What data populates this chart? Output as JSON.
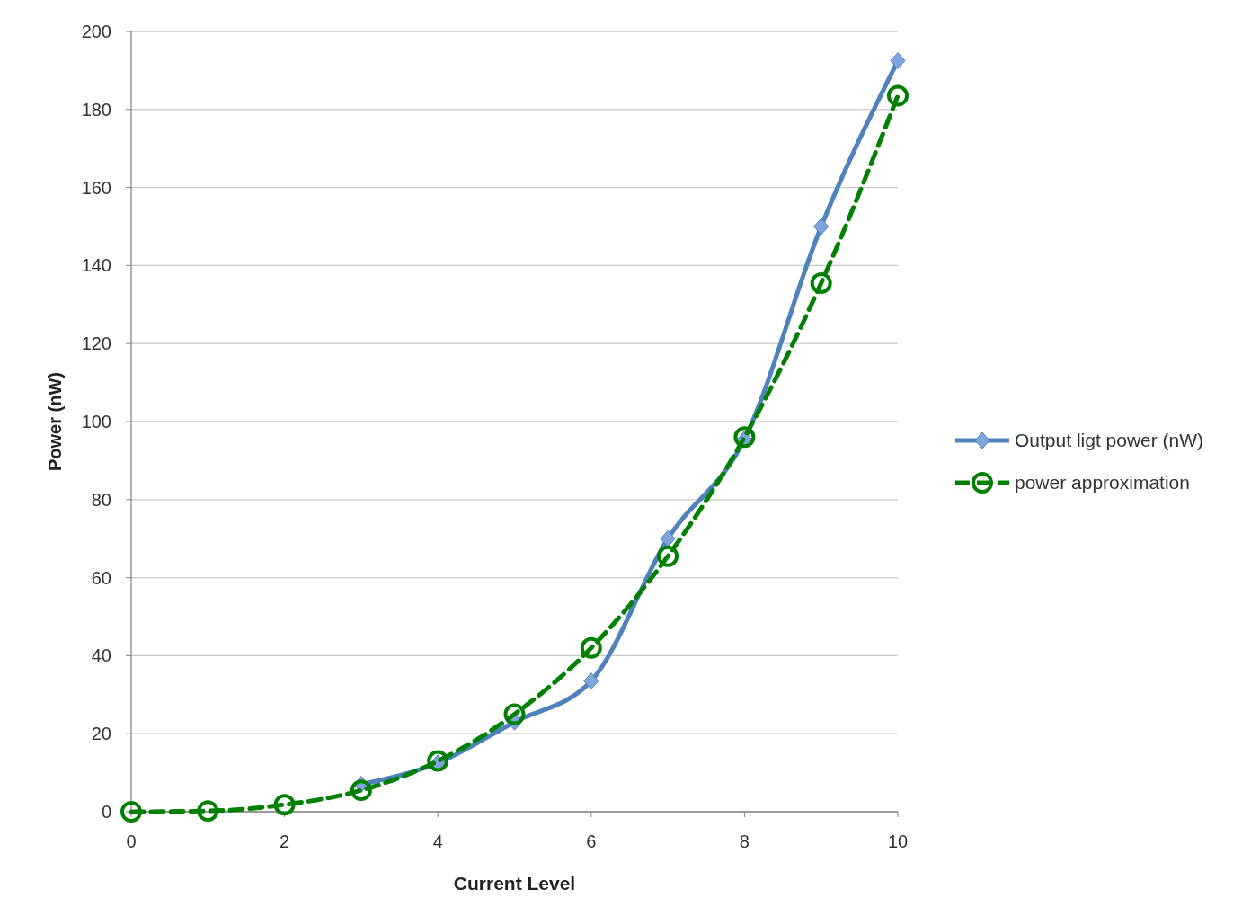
{
  "chart_data": {
    "type": "line",
    "xlabel": "Current Level",
    "ylabel": "Power (nW)",
    "x": [
      0,
      1,
      2,
      3,
      4,
      5,
      6,
      7,
      8,
      9,
      10
    ],
    "series": [
      {
        "name": "Output ligt power (nW)",
        "color": "#4f81bd",
        "marker": "diamond",
        "line_style": "solid",
        "values": [
          null,
          null,
          null,
          7,
          12.5,
          23,
          33.5,
          70,
          95.5,
          150,
          192.5
        ]
      },
      {
        "name": "power approximation",
        "color": "#008000",
        "marker": "circle",
        "line_style": "dashed",
        "values": [
          0,
          0.2,
          1.8,
          5.5,
          13,
          25,
          42,
          65.5,
          96,
          135.5,
          183.5
        ]
      }
    ],
    "xlim": [
      0,
      10
    ],
    "xticks": [
      0,
      2,
      4,
      6,
      8,
      10
    ],
    "ylim": [
      0,
      200
    ],
    "yticks": [
      0,
      20,
      40,
      60,
      80,
      100,
      120,
      140,
      160,
      180,
      200
    ],
    "grid": "y",
    "legend": "right"
  }
}
